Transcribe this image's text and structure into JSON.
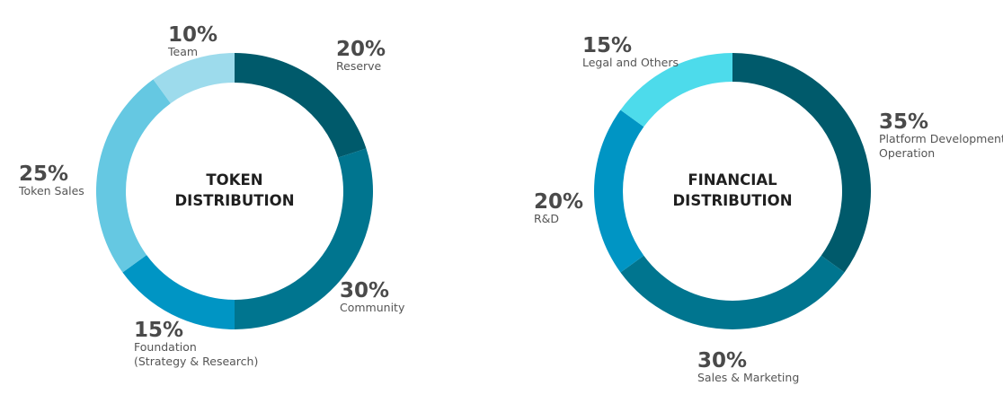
{
  "chart_data": [
    {
      "type": "pie",
      "title": "TOKEN DISTRIBUTION",
      "title_lines": [
        "TOKEN",
        "DISTRIBUTION"
      ],
      "slices": [
        {
          "label": "Reserve",
          "label_lines": [
            "Reserve"
          ],
          "percent_label": "20%",
          "value": 20,
          "color": "#005a6b"
        },
        {
          "label": "Community",
          "label_lines": [
            "Community"
          ],
          "percent_label": "30%",
          "value": 30,
          "color": "#00758f"
        },
        {
          "label": "Foundation (Strategy & Research)",
          "label_lines": [
            "Foundation",
            "(Strategy & Research)"
          ],
          "percent_label": "15%",
          "value": 15,
          "color": "#0095c4"
        },
        {
          "label": "Token Sales",
          "label_lines": [
            "Token Sales"
          ],
          "percent_label": "25%",
          "value": 25,
          "color": "#65c8e2"
        },
        {
          "label": "Team",
          "label_lines": [
            "Team"
          ],
          "percent_label": "10%",
          "value": 10,
          "color": "#9ddbec"
        }
      ]
    },
    {
      "type": "pie",
      "title": "FINANCIAL DISTRIBUTION",
      "title_lines": [
        "FINANCIAL",
        "DISTRIBUTION"
      ],
      "slices": [
        {
          "label": "Platform Development Operation",
          "label_lines": [
            "Platform Development",
            "Operation"
          ],
          "percent_label": "35%",
          "value": 35,
          "color": "#005a6b"
        },
        {
          "label": "Sales & Marketing",
          "label_lines": [
            "Sales & Marketing"
          ],
          "percent_label": "30%",
          "value": 30,
          "color": "#00758f"
        },
        {
          "label": "R&D",
          "label_lines": [
            "R&D"
          ],
          "percent_label": "20%",
          "value": 20,
          "color": "#0095c4"
        },
        {
          "label": "Legal and Others",
          "label_lines": [
            "Legal and Others"
          ],
          "percent_label": "15%",
          "value": 15,
          "color": "#4ddbeb"
        }
      ]
    }
  ]
}
